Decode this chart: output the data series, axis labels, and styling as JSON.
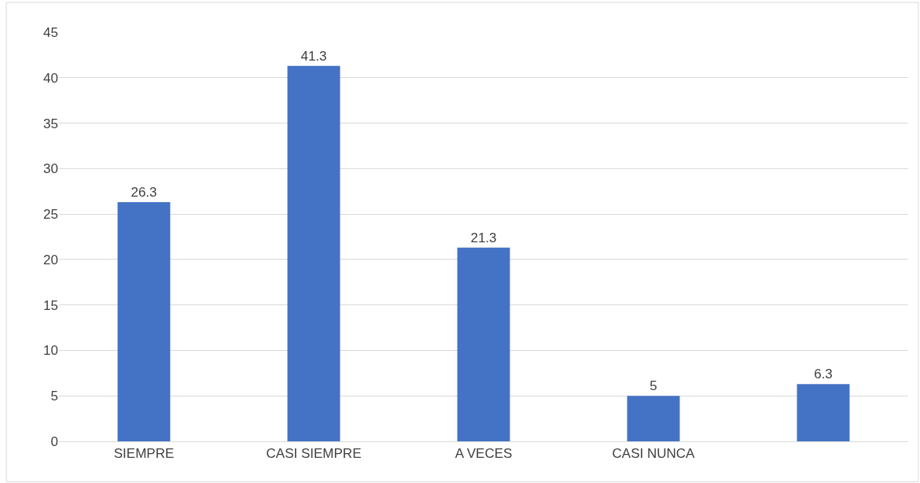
{
  "chart_data": {
    "type": "bar",
    "categories": [
      "SIEMPRE",
      "CASI SIEMPRE",
      "A VECES",
      "CASI NUNCA",
      null
    ],
    "values": [
      26.3,
      41.3,
      21.3,
      5,
      6.3
    ],
    "color": "#4472c4",
    "ylim": [
      0,
      45
    ],
    "yticks": [
      0,
      5,
      10,
      15,
      20,
      25,
      30,
      35,
      40,
      45
    ],
    "grid": "y",
    "data_labels": true
  }
}
